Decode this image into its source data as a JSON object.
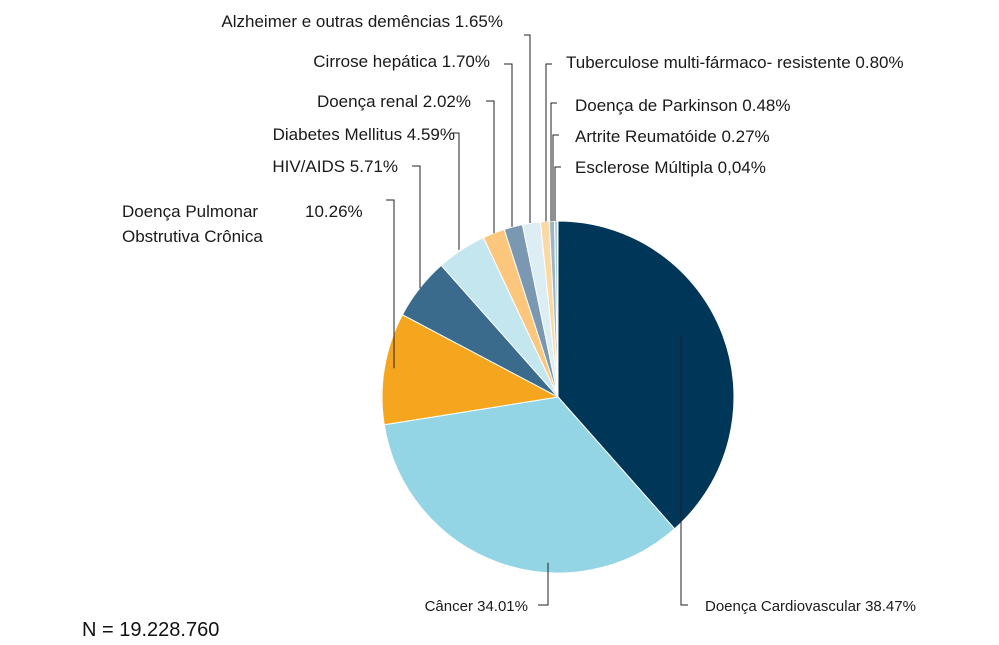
{
  "chart_data": {
    "type": "pie",
    "total_label": "N = 19.228.760",
    "slices": [
      {
        "label": "Doença Cardiovascular",
        "pct_text": "38.47%",
        "value": 38.47,
        "color": "#003658"
      },
      {
        "label": "Câncer",
        "pct_text": "34.01%",
        "value": 34.01,
        "color": "#94d5e5"
      },
      {
        "label_lines": [
          "Doença Pulmonar",
          "Obstrutiva Crônica"
        ],
        "pct_text": "10.26%",
        "value": 10.26,
        "color": "#f6a51e"
      },
      {
        "label": "HIV/AIDS",
        "pct_text": "5.71%",
        "value": 5.71,
        "color": "#3a6b8d"
      },
      {
        "label": "Diabetes Mellitus",
        "pct_text": "4.59%",
        "value": 4.59,
        "color": "#c4e6ee"
      },
      {
        "label": "Doença renal",
        "pct_text": "2.02%",
        "value": 2.02,
        "color": "#fcc77c"
      },
      {
        "label": "Cirrose hepática",
        "pct_text": "1.70%",
        "value": 1.7,
        "color": "#7a98b1"
      },
      {
        "label": "Alzheimer e outras demências",
        "pct_text": "1.65%",
        "value": 1.65,
        "color": "#dcedf3"
      },
      {
        "label": "Tuberculose multi-fármaco- resistente",
        "pct_text": "0.80%",
        "value": 0.8,
        "color": "#fbd9a4"
      },
      {
        "label": "Doença de Parkinson",
        "pct_text": "0.48%",
        "value": 0.48,
        "color": "#9db5c8"
      },
      {
        "label": "Artrite Reumatóide",
        "pct_text": "0.27%",
        "value": 0.27,
        "color": "#a9cdd9"
      },
      {
        "label": "Esclerose Múltipla",
        "pct_text": "0,04%",
        "value": 0.04,
        "color": "#9ab0c2"
      }
    ]
  }
}
